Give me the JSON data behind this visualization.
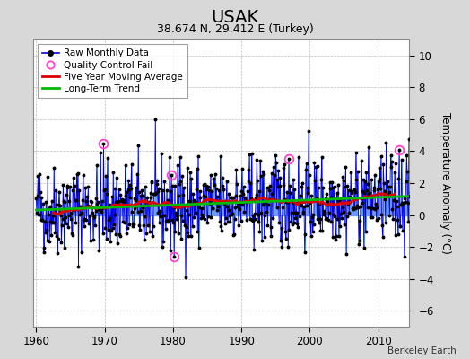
{
  "title": "USAK",
  "subtitle": "38.674 N, 29.412 E (Turkey)",
  "ylabel": "Temperature Anomaly (°C)",
  "attribution": "Berkeley Earth",
  "start_year": 1960,
  "end_year": 2015,
  "ylim": [
    -7,
    11
  ],
  "yticks": [
    -6,
    -4,
    -2,
    0,
    2,
    4,
    6,
    8,
    10
  ],
  "xticks": [
    1960,
    1970,
    1980,
    1990,
    2000,
    2010
  ],
  "bg_color": "#d8d8d8",
  "plot_bg_color": "#ffffff",
  "line_color": "#0000dd",
  "bar_color": "#6699ff",
  "ma_color": "#dd0000",
  "trend_color": "#00bb00",
  "qc_color": "#ff44cc",
  "seed": 42
}
